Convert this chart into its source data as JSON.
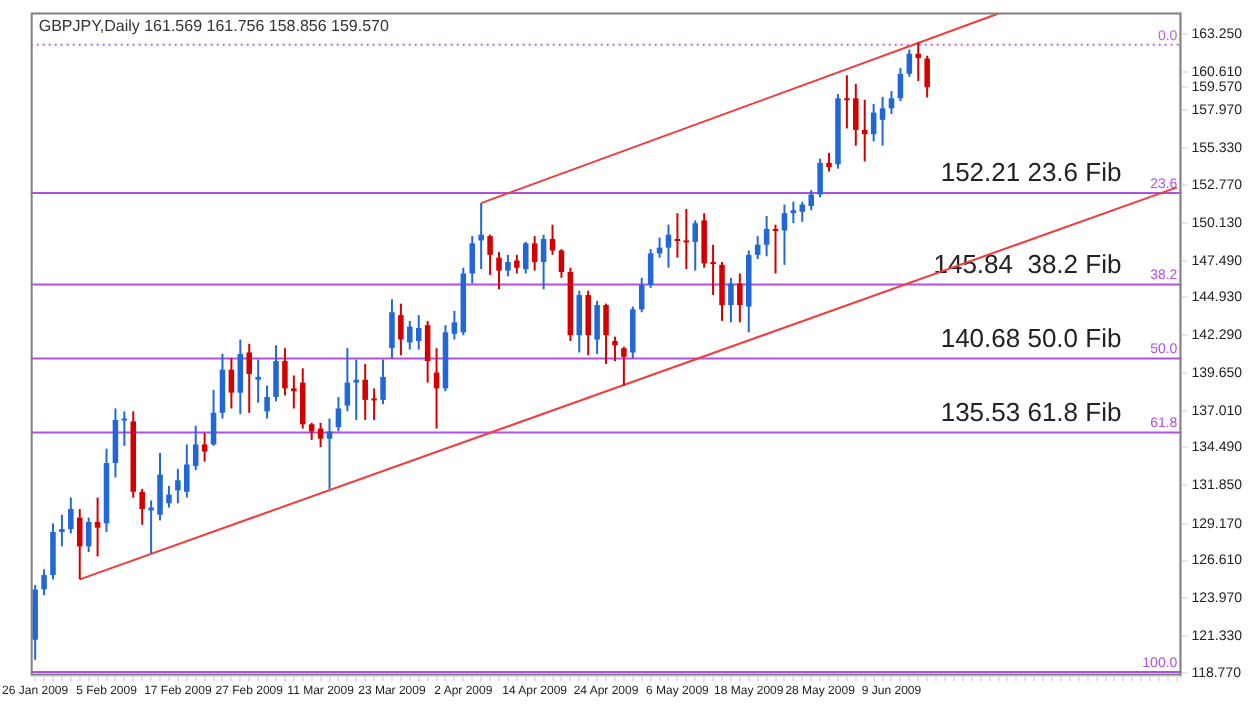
{
  "chart_data": {
    "type": "candlestick",
    "title": "GBPJPY,Daily 161.569 161.756 158.856 159.570",
    "categories": [
      "26 Jan 2009",
      null,
      null,
      null,
      null,
      null,
      null,
      null,
      "5 Feb 2009",
      null,
      null,
      null,
      null,
      null,
      null,
      null,
      "17 Feb 2009",
      null,
      null,
      null,
      null,
      null,
      null,
      null,
      "27 Feb 2009",
      null,
      null,
      null,
      null,
      null,
      null,
      null,
      "11 Mar 2009",
      null,
      null,
      null,
      null,
      null,
      null,
      null,
      "23 Mar 2009",
      null,
      null,
      null,
      null,
      null,
      null,
      null,
      "2 Apr 2009",
      null,
      null,
      null,
      null,
      null,
      null,
      null,
      "14 Apr 2009",
      null,
      null,
      null,
      null,
      null,
      null,
      null,
      "24 Apr 2009",
      null,
      null,
      null,
      null,
      null,
      null,
      null,
      "6 May 2009",
      null,
      null,
      null,
      null,
      null,
      null,
      null,
      "18 May 2009",
      null,
      null,
      null,
      null,
      null,
      null,
      null,
      "28 May 2009",
      null,
      null,
      null,
      null,
      null,
      null,
      null,
      "9 Jun 2009",
      null,
      null,
      null,
      null,
      null,
      null,
      null,
      null,
      null,
      null,
      null,
      null,
      null,
      null,
      null,
      null,
      null,
      null,
      null,
      null,
      null,
      null,
      null,
      null,
      null,
      null,
      null,
      null,
      null,
      null,
      null,
      null
    ],
    "ohlc": [
      [
        121.1,
        124.9,
        119.7,
        124.6
      ],
      [
        124.6,
        126.0,
        124.2,
        125.6
      ],
      [
        125.6,
        129.2,
        125.3,
        128.6
      ],
      [
        128.6,
        129.8,
        127.6,
        128.8
      ],
      [
        128.8,
        131.0,
        128.5,
        130.2
      ],
      [
        129.6,
        130.2,
        125.3,
        127.6
      ],
      [
        127.6,
        129.6,
        127.2,
        129.3
      ],
      [
        129.3,
        131.0,
        126.9,
        128.9
      ],
      [
        129.2,
        134.4,
        128.6,
        133.4
      ],
      [
        133.4,
        137.2,
        132.4,
        136.4
      ],
      [
        136.4,
        137.0,
        134.6,
        136.5
      ],
      [
        136.3,
        137.0,
        131.0,
        131.4
      ],
      [
        131.4,
        131.6,
        129.1,
        130.2
      ],
      [
        130.1,
        130.8,
        127.1,
        130.3
      ],
      [
        129.8,
        134.1,
        129.4,
        132.6
      ],
      [
        130.6,
        131.8,
        130.3,
        131.2
      ],
      [
        131.5,
        133.0,
        130.6,
        132.2
      ],
      [
        131.4,
        134.7,
        131.0,
        133.3
      ],
      [
        133.2,
        136.0,
        132.9,
        134.7
      ],
      [
        134.7,
        135.5,
        133.5,
        134.2
      ],
      [
        134.7,
        138.5,
        134.6,
        136.9
      ],
      [
        136.9,
        141.0,
        136.5,
        139.9
      ],
      [
        139.9,
        140.7,
        137.2,
        138.3
      ],
      [
        138.3,
        142.0,
        136.8,
        141.0
      ],
      [
        141.1,
        141.7,
        136.9,
        139.6
      ],
      [
        139.2,
        140.6,
        137.6,
        139.4
      ],
      [
        137.0,
        138.8,
        136.5,
        138.0
      ],
      [
        138.0,
        141.6,
        137.7,
        140.5
      ],
      [
        140.5,
        141.4,
        138.1,
        138.6
      ],
      [
        138.6,
        139.5,
        137.2,
        138.4
      ],
      [
        139.0,
        140.0,
        135.8,
        136.1
      ],
      [
        136.1,
        136.2,
        135.0,
        135.6
      ],
      [
        135.8,
        136.2,
        134.5,
        135.1
      ],
      [
        135.1,
        136.5,
        131.6,
        135.6
      ],
      [
        135.9,
        138.0,
        135.6,
        137.2
      ],
      [
        137.4,
        141.4,
        137.0,
        139.0
      ],
      [
        139.0,
        140.6,
        136.4,
        139.2
      ],
      [
        139.2,
        140.3,
        136.4,
        137.8
      ],
      [
        137.9,
        138.6,
        136.4,
        137.8
      ],
      [
        137.8,
        140.6,
        137.5,
        139.4
      ],
      [
        141.4,
        144.8,
        140.7,
        143.9
      ],
      [
        143.7,
        144.5,
        140.9,
        142.0
      ],
      [
        141.8,
        143.3,
        141.3,
        142.9
      ],
      [
        141.9,
        143.7,
        141.3,
        142.8
      ],
      [
        143.0,
        143.3,
        139.0,
        140.5
      ],
      [
        139.7,
        141.4,
        135.8,
        138.6
      ],
      [
        138.6,
        143.0,
        138.4,
        142.5
      ],
      [
        142.4,
        144.0,
        142.0,
        143.2
      ],
      [
        142.5,
        147.0,
        142.3,
        146.6
      ],
      [
        146.6,
        149.2,
        145.9,
        148.7
      ],
      [
        148.9,
        151.5,
        146.9,
        149.3
      ],
      [
        149.2,
        149.3,
        146.5,
        147.9
      ],
      [
        147.7,
        148.1,
        145.5,
        146.8
      ],
      [
        146.8,
        147.9,
        146.4,
        147.4
      ],
      [
        147.5,
        147.9,
        146.6,
        147.0
      ],
      [
        146.9,
        148.8,
        146.6,
        148.7
      ],
      [
        148.7,
        149.2,
        146.8,
        147.4
      ],
      [
        147.4,
        149.3,
        145.5,
        149.0
      ],
      [
        149.0,
        150.0,
        147.9,
        148.2
      ],
      [
        148.2,
        148.3,
        146.3,
        146.7
      ],
      [
        146.7,
        147.0,
        141.9,
        142.3
      ],
      [
        142.3,
        145.4,
        141.1,
        145.1
      ],
      [
        145.1,
        145.4,
        140.9,
        142.3
      ],
      [
        142.0,
        144.7,
        141.0,
        144.4
      ],
      [
        144.4,
        144.5,
        140.3,
        142.3
      ],
      [
        141.9,
        142.2,
        140.5,
        141.6
      ],
      [
        141.4,
        141.5,
        138.8,
        140.8
      ],
      [
        141.1,
        144.3,
        140.7,
        144.1
      ],
      [
        144.1,
        146.3,
        143.9,
        145.8
      ],
      [
        145.8,
        148.3,
        145.6,
        148.0
      ],
      [
        148.0,
        149.1,
        147.7,
        148.4
      ],
      [
        148.4,
        150.0,
        147.0,
        149.3
      ],
      [
        149.0,
        150.8,
        147.7,
        148.9
      ],
      [
        148.9,
        151.1,
        146.9,
        148.8
      ],
      [
        148.8,
        150.3,
        146.8,
        150.1
      ],
      [
        150.3,
        150.8,
        147.0,
        147.3
      ],
      [
        147.4,
        148.6,
        145.1,
        147.3
      ],
      [
        147.2,
        147.4,
        143.3,
        144.4
      ],
      [
        144.4,
        146.3,
        143.2,
        145.9
      ],
      [
        145.9,
        146.6,
        143.2,
        144.4
      ],
      [
        144.3,
        148.2,
        142.5,
        147.9
      ],
      [
        147.9,
        149.2,
        147.6,
        148.6
      ],
      [
        148.6,
        150.6,
        147.8,
        149.7
      ],
      [
        149.7,
        150.0,
        146.6,
        149.6
      ],
      [
        149.6,
        151.4,
        147.2,
        150.8
      ],
      [
        150.8,
        151.6,
        150.1,
        151.0
      ],
      [
        150.9,
        151.6,
        150.2,
        151.4
      ],
      [
        151.3,
        152.4,
        151.0,
        152.1
      ],
      [
        152.1,
        154.6,
        151.9,
        154.3
      ],
      [
        154.3,
        155.0,
        153.7,
        154.0
      ],
      [
        154.2,
        159.1,
        153.9,
        158.8
      ],
      [
        158.8,
        160.4,
        156.7,
        158.7
      ],
      [
        158.8,
        159.8,
        155.5,
        156.6
      ],
      [
        156.6,
        158.7,
        154.4,
        156.3
      ],
      [
        156.3,
        158.4,
        155.8,
        157.8
      ],
      [
        157.3,
        158.9,
        155.5,
        158.1
      ],
      [
        158.1,
        159.3,
        157.7,
        158.8
      ],
      [
        158.8,
        160.9,
        158.6,
        160.5
      ],
      [
        160.5,
        162.2,
        160.3,
        161.9
      ],
      [
        161.9,
        162.7,
        160.0,
        161.6
      ],
      [
        161.569,
        161.756,
        158.856,
        159.57
      ],
      null,
      null,
      null,
      null,
      null,
      null,
      null,
      null,
      null,
      null,
      null,
      null,
      null,
      null,
      null,
      null,
      null,
      null,
      null,
      null,
      null,
      null,
      null,
      null,
      null,
      null,
      null,
      null
    ],
    "colors": [
      "#2167d8",
      "#2167d8",
      "#2167d8",
      "#2167d8",
      "#2167d8",
      "#d40000",
      "#2167d8",
      "#d40000",
      "#2167d8",
      "#2167d8",
      "#2167d8",
      "#d40000",
      "#d40000",
      "#2167d8",
      "#2167d8",
      "#2167d8",
      "#2167d8",
      "#2167d8",
      "#2167d8",
      "#d40000",
      "#2167d8",
      "#2167d8",
      "#d40000",
      "#2167d8",
      "#d40000",
      "#2167d8",
      "#2167d8",
      "#2167d8",
      "#d40000",
      "#d40000",
      "#d40000",
      "#d40000",
      "#d40000",
      "#2167d8",
      "#2167d8",
      "#2167d8",
      "#2167d8",
      "#d40000",
      "#d40000",
      "#2167d8",
      "#2167d8",
      "#d40000",
      "#2167d8",
      "#2167d8",
      "#d40000",
      "#d40000",
      "#2167d8",
      "#2167d8",
      "#2167d8",
      "#2167d8",
      "#2167d8",
      "#d40000",
      "#d40000",
      "#2167d8",
      "#d40000",
      "#2167d8",
      "#d40000",
      "#2167d8",
      "#d40000",
      "#d40000",
      "#d40000",
      "#2167d8",
      "#d40000",
      "#2167d8",
      "#d40000",
      "#d40000",
      "#d40000",
      "#2167d8",
      "#2167d8",
      "#2167d8",
      "#2167d8",
      "#2167d8",
      "#d40000",
      "#d40000",
      "#2167d8",
      "#d40000",
      "#d40000",
      "#d40000",
      "#2167d8",
      "#d40000",
      "#2167d8",
      "#2167d8",
      "#2167d8",
      "#d40000",
      "#2167d8",
      "#2167d8",
      "#2167d8",
      "#2167d8",
      "#2167d8",
      "#d40000",
      "#2167d8",
      "#d40000",
      "#d40000",
      "#d40000",
      "#2167d8",
      "#2167d8",
      "#2167d8",
      "#2167d8",
      "#2167d8",
      "#d40000",
      "#d40000",
      null,
      null,
      null,
      null,
      null,
      null,
      null,
      null,
      null,
      null,
      null,
      null,
      null,
      null,
      null,
      null,
      null,
      null,
      null,
      null,
      null,
      null,
      null,
      null,
      null,
      null,
      null,
      null
    ],
    "series": [
      {
        "type": "line",
        "color": "#f03c3c",
        "values": [
          null,
          null,
          null,
          null,
          null,
          125.3,
          null,
          null,
          null,
          null,
          null,
          null,
          null,
          null,
          null,
          null,
          null,
          null,
          null,
          null,
          null,
          null,
          null,
          null,
          null,
          null,
          null,
          null,
          null,
          null,
          null,
          null,
          null,
          null,
          null,
          null,
          null,
          null,
          null,
          null,
          null,
          null,
          null,
          null,
          null,
          null,
          null,
          null,
          null,
          null,
          null,
          null,
          null,
          null,
          null,
          null,
          null,
          null,
          null,
          null,
          null,
          null,
          null,
          null,
          null,
          null,
          null,
          null,
          null,
          null,
          null,
          null,
          null,
          null,
          null,
          null,
          null,
          null,
          null,
          null,
          null,
          null,
          null,
          null,
          null,
          null,
          null,
          null,
          null,
          null,
          null,
          null,
          null,
          null,
          null,
          null,
          null,
          null,
          null,
          null,
          null,
          null,
          null,
          null,
          null,
          null,
          null,
          null,
          null,
          null,
          null,
          null,
          null,
          null,
          null,
          null,
          null,
          null,
          null,
          null,
          null,
          null,
          null,
          null,
          null,
          null,
          null,
          null,
          152.6
        ]
      },
      {
        "type": "line",
        "color": "#f03c3c",
        "values": [
          null,
          null,
          null,
          null,
          null,
          null,
          null,
          null,
          null,
          null,
          null,
          null,
          null,
          null,
          null,
          null,
          null,
          null,
          null,
          null,
          null,
          null,
          null,
          null,
          null,
          null,
          null,
          null,
          null,
          null,
          null,
          null,
          null,
          null,
          null,
          null,
          null,
          null,
          null,
          null,
          null,
          null,
          null,
          null,
          null,
          null,
          null,
          null,
          null,
          null,
          151.5,
          null,
          null,
          null,
          null,
          null,
          null,
          null,
          null,
          null,
          null,
          null,
          null,
          null,
          null,
          null,
          null,
          null,
          null,
          null,
          null,
          null,
          null,
          null,
          null,
          null,
          null,
          null,
          null,
          null,
          null,
          null,
          null,
          null,
          null,
          null,
          null,
          null,
          null,
          null,
          null,
          null,
          null,
          null,
          null,
          null,
          null,
          null,
          null,
          null,
          null,
          null,
          null,
          null,
          null,
          null,
          null,
          null,
          164.7,
          null,
          null,
          null,
          null,
          null,
          null,
          null,
          null,
          null,
          null,
          null,
          null,
          null,
          null,
          null,
          null,
          null,
          null,
          null,
          null
        ]
      }
    ],
    "ylim": [
      118.6,
      164.78
    ],
    "yticks": [
      {
        "value": 163.25,
        "label": "163.250"
      },
      {
        "value": 160.61,
        "label": "160.610"
      },
      {
        "value": 159.57,
        "label": "159.570"
      },
      {
        "value": 157.97,
        "label": "157.970"
      },
      {
        "value": 155.33,
        "label": "155.330"
      },
      {
        "value": 152.77,
        "label": "152.770"
      },
      {
        "value": 150.13,
        "label": "150.130"
      },
      {
        "value": 147.49,
        "label": "147.490"
      },
      {
        "value": 144.93,
        "label": "144.930"
      },
      {
        "value": 142.29,
        "label": "142.290"
      },
      {
        "value": 139.65,
        "label": "139.650"
      },
      {
        "value": 137.01,
        "label": "137.010"
      },
      {
        "value": 134.49,
        "label": "134.490"
      },
      {
        "value": 131.85,
        "label": "131.850"
      },
      {
        "value": 129.17,
        "label": "129.170"
      },
      {
        "value": 126.61,
        "label": "126.610"
      },
      {
        "value": 123.97,
        "label": "123.970"
      },
      {
        "value": 121.33,
        "label": "121.330"
      },
      {
        "value": 118.77,
        "label": "118.770"
      }
    ],
    "ref_lines": [
      {
        "axis": "y",
        "value": 162.52,
        "color": "#c060e0",
        "line_style": "dotted"
      },
      {
        "axis": "y",
        "value": 152.21,
        "label": "152.21 23.6 Fib",
        "color": "#b050e0",
        "line_style": "solid"
      },
      {
        "axis": "y",
        "value": 145.84,
        "label": "145.84  38.2 Fib",
        "color": "#b050e0",
        "line_style": "solid"
      },
      {
        "axis": "y",
        "value": 140.68,
        "label": "140.68 50.0 Fib",
        "color": "#b050e0",
        "line_style": "solid"
      },
      {
        "axis": "y",
        "value": 135.53,
        "label": "135.53 61.8 Fib",
        "color": "#b050e0",
        "line_style": "solid"
      },
      {
        "axis": "y",
        "value": 118.85,
        "color": "#b050e0",
        "line_style": "solid"
      }
    ],
    "annotations": [
      {
        "text": "0.0",
        "y": 162.52
      },
      {
        "text": "23.6",
        "y": 152.21
      },
      {
        "text": "38.2",
        "y": 145.84
      },
      {
        "text": "50.0",
        "y": 140.68
      },
      {
        "text": "61.8",
        "y": 135.53
      },
      {
        "text": "100.0",
        "y": 118.85
      }
    ]
  }
}
